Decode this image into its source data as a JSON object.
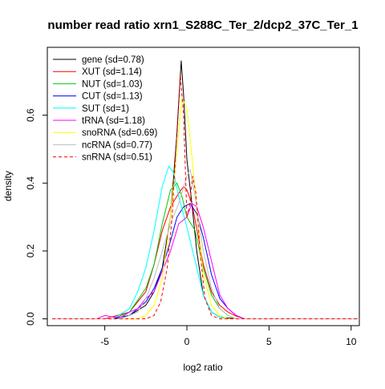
{
  "chart_data": {
    "type": "line",
    "title": "number read ratio xrn1_S288C_Ter_2/dcp2_37C_Ter_1",
    "xlabel": "log2 ratio",
    "ylabel": "density",
    "xlim": [
      -8.5,
      10.5
    ],
    "ylim": [
      -0.02,
      0.8
    ],
    "x_ticks": [
      -5,
      0,
      5,
      10
    ],
    "y_ticks": [
      0.0,
      0.2,
      0.4,
      0.6
    ],
    "x_tick_labels": [
      "-5",
      "0",
      "5",
      "10"
    ],
    "y_tick_labels": [
      "0.0",
      "0.2",
      "0.4",
      "0.6"
    ],
    "grid": false,
    "legend_position": "top-left",
    "series": [
      {
        "name": "gene (sd=0.78)",
        "color": "#000000",
        "dashed": false,
        "points": [
          [
            -8.2,
            0.0
          ],
          [
            -4.5,
            0.0
          ],
          [
            -3.5,
            0.01
          ],
          [
            -2.5,
            0.04
          ],
          [
            -2.0,
            0.08
          ],
          [
            -1.5,
            0.15
          ],
          [
            -1.0,
            0.3
          ],
          [
            -0.6,
            0.55
          ],
          [
            -0.35,
            0.76
          ],
          [
            -0.2,
            0.66
          ],
          [
            0.0,
            0.47
          ],
          [
            0.3,
            0.34
          ],
          [
            0.6,
            0.2
          ],
          [
            1.0,
            0.07
          ],
          [
            1.5,
            0.02
          ],
          [
            2.0,
            0.005
          ],
          [
            3.0,
            0.0
          ],
          [
            10.5,
            0.0
          ]
        ]
      },
      {
        "name": "XUT (sd=1.14)",
        "color": "#ff0000",
        "dashed": false,
        "points": [
          [
            -8.2,
            0.0
          ],
          [
            -5.0,
            0.0
          ],
          [
            -3.5,
            0.02
          ],
          [
            -2.5,
            0.08
          ],
          [
            -2.0,
            0.16
          ],
          [
            -1.5,
            0.26
          ],
          [
            -1.0,
            0.33
          ],
          [
            -0.5,
            0.37
          ],
          [
            -0.2,
            0.39
          ],
          [
            0.0,
            0.38
          ],
          [
            0.3,
            0.34
          ],
          [
            0.7,
            0.24
          ],
          [
            1.0,
            0.16
          ],
          [
            1.5,
            0.08
          ],
          [
            2.0,
            0.04
          ],
          [
            2.5,
            0.02
          ],
          [
            3.0,
            0.008
          ],
          [
            3.5,
            0.0
          ],
          [
            10.5,
            0.0
          ]
        ]
      },
      {
        "name": "NUT (sd=1.03)",
        "color": "#00cc00",
        "dashed": false,
        "points": [
          [
            -8.2,
            0.0
          ],
          [
            -4.5,
            0.0
          ],
          [
            -3.5,
            0.02
          ],
          [
            -2.5,
            0.09
          ],
          [
            -2.0,
            0.16
          ],
          [
            -1.5,
            0.28
          ],
          [
            -1.0,
            0.38
          ],
          [
            -0.6,
            0.4
          ],
          [
            -0.3,
            0.36
          ],
          [
            0.0,
            0.3
          ],
          [
            0.5,
            0.26
          ],
          [
            1.0,
            0.15
          ],
          [
            1.5,
            0.07
          ],
          [
            2.0,
            0.03
          ],
          [
            2.5,
            0.01
          ],
          [
            3.0,
            0.0
          ],
          [
            10.5,
            0.0
          ]
        ]
      },
      {
        "name": "CUT (sd=1.13)",
        "color": "#0000ff",
        "dashed": false,
        "points": [
          [
            -8.2,
            0.0
          ],
          [
            -4.5,
            0.0
          ],
          [
            -3.5,
            0.01
          ],
          [
            -3.0,
            0.03
          ],
          [
            -2.5,
            0.05
          ],
          [
            -2.0,
            0.09
          ],
          [
            -1.5,
            0.15
          ],
          [
            -1.0,
            0.23
          ],
          [
            -0.6,
            0.3
          ],
          [
            -0.2,
            0.33
          ],
          [
            0.2,
            0.34
          ],
          [
            0.6,
            0.31
          ],
          [
            1.0,
            0.24
          ],
          [
            1.5,
            0.13
          ],
          [
            2.0,
            0.06
          ],
          [
            2.5,
            0.03
          ],
          [
            3.0,
            0.01
          ],
          [
            3.5,
            0.0
          ],
          [
            10.5,
            0.0
          ]
        ]
      },
      {
        "name": "SUT (sd=1)",
        "color": "#00ffff",
        "dashed": false,
        "points": [
          [
            -8.2,
            0.0
          ],
          [
            -4.5,
            0.0
          ],
          [
            -3.5,
            0.03
          ],
          [
            -3.0,
            0.08
          ],
          [
            -2.5,
            0.15
          ],
          [
            -2.0,
            0.26
          ],
          [
            -1.5,
            0.39
          ],
          [
            -1.1,
            0.45
          ],
          [
            -0.8,
            0.43
          ],
          [
            -0.5,
            0.36
          ],
          [
            0.0,
            0.27
          ],
          [
            0.5,
            0.17
          ],
          [
            1.0,
            0.07
          ],
          [
            1.5,
            0.02
          ],
          [
            2.0,
            0.005
          ],
          [
            2.5,
            0.0
          ],
          [
            10.5,
            0.0
          ]
        ]
      },
      {
        "name": "tRNA (sd=1.18)",
        "color": "#ff00ff",
        "dashed": false,
        "points": [
          [
            -8.2,
            0.0
          ],
          [
            -5.5,
            0.0
          ],
          [
            -5.0,
            0.01
          ],
          [
            -4.5,
            0.005
          ],
          [
            -4.0,
            0.005
          ],
          [
            -3.5,
            0.02
          ],
          [
            -3.0,
            0.03
          ],
          [
            -2.5,
            0.06
          ],
          [
            -2.0,
            0.08
          ],
          [
            -1.5,
            0.14
          ],
          [
            -1.0,
            0.2
          ],
          [
            -0.5,
            0.28
          ],
          [
            0.0,
            0.3
          ],
          [
            0.3,
            0.34
          ],
          [
            0.6,
            0.33
          ],
          [
            1.0,
            0.27
          ],
          [
            1.5,
            0.17
          ],
          [
            2.0,
            0.07
          ],
          [
            2.5,
            0.03
          ],
          [
            3.0,
            0.01
          ],
          [
            3.5,
            0.0
          ],
          [
            10.5,
            0.0
          ]
        ]
      },
      {
        "name": "snoRNA (sd=0.69)",
        "color": "#ffff00",
        "dashed": false,
        "points": [
          [
            -8.2,
            0.0
          ],
          [
            -3.0,
            0.0
          ],
          [
            -2.5,
            0.01
          ],
          [
            -2.0,
            0.04
          ],
          [
            -1.5,
            0.12
          ],
          [
            -1.0,
            0.3
          ],
          [
            -0.6,
            0.5
          ],
          [
            -0.3,
            0.65
          ],
          [
            0.0,
            0.62
          ],
          [
            0.3,
            0.48
          ],
          [
            0.7,
            0.27
          ],
          [
            1.0,
            0.13
          ],
          [
            1.5,
            0.04
          ],
          [
            2.0,
            0.01
          ],
          [
            2.5,
            0.0
          ],
          [
            10.5,
            0.0
          ]
        ]
      },
      {
        "name": "ncRNA (sd=0.77)",
        "color": "#bebebe",
        "dashed": false,
        "points": [
          [
            -8.2,
            0.0
          ],
          [
            -4.0,
            0.0
          ],
          [
            -3.0,
            0.02
          ],
          [
            -2.5,
            0.06
          ],
          [
            -2.0,
            0.12
          ],
          [
            -1.5,
            0.2
          ],
          [
            -1.0,
            0.28
          ],
          [
            -0.5,
            0.34
          ],
          [
            0.0,
            0.42
          ],
          [
            0.2,
            0.44
          ],
          [
            0.5,
            0.36
          ],
          [
            1.0,
            0.2
          ],
          [
            1.5,
            0.09
          ],
          [
            2.0,
            0.03
          ],
          [
            2.5,
            0.01
          ],
          [
            3.0,
            0.0
          ],
          [
            10.5,
            0.0
          ]
        ]
      },
      {
        "name": "snRNA (sd=0.51)",
        "color": "#ff0000",
        "dashed": true,
        "points": [
          [
            -8.2,
            0.0
          ],
          [
            -2.5,
            0.0
          ],
          [
            -2.0,
            0.01
          ],
          [
            -1.6,
            0.05
          ],
          [
            -1.2,
            0.15
          ],
          [
            -0.9,
            0.3
          ],
          [
            -0.6,
            0.56
          ],
          [
            -0.4,
            0.72
          ],
          [
            -0.2,
            0.6
          ],
          [
            0.0,
            0.3
          ],
          [
            0.15,
            0.33
          ],
          [
            0.35,
            0.42
          ],
          [
            0.55,
            0.37
          ],
          [
            0.8,
            0.2
          ],
          [
            1.1,
            0.06
          ],
          [
            1.5,
            0.01
          ],
          [
            2.0,
            0.0
          ],
          [
            10.5,
            0.0
          ]
        ]
      }
    ]
  }
}
